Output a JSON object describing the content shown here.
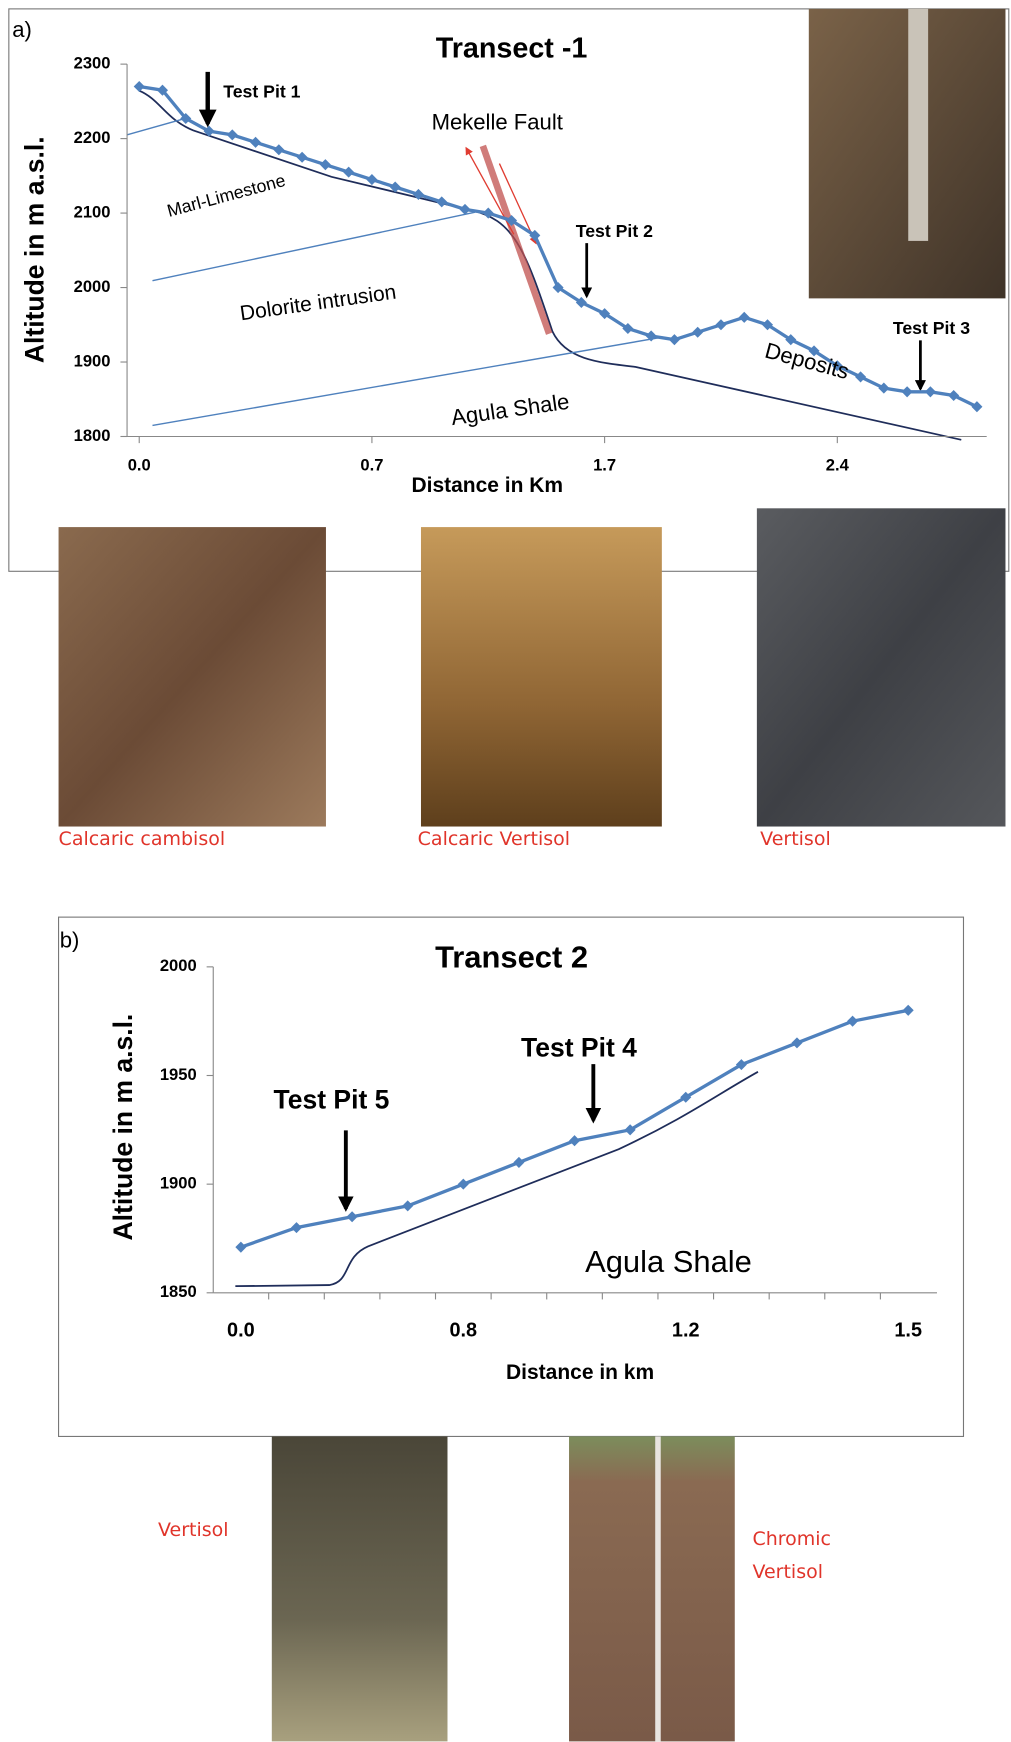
{
  "chart_data": [
    {
      "type": "line",
      "panel_label": "a)",
      "title": "Transect -1",
      "x_label": "Distance in Km",
      "y_label": "Altitude in m a.s.l.",
      "categories": [
        "0.0",
        null,
        null,
        null,
        null,
        null,
        null,
        null,
        null,
        null,
        "0.7",
        null,
        null,
        null,
        null,
        null,
        null,
        null,
        null,
        null,
        "1.7",
        null,
        null,
        null,
        null,
        null,
        null,
        null,
        null,
        null,
        "2.4",
        null,
        null,
        null,
        null,
        null,
        null
      ],
      "values": [
        2270,
        2265,
        2227,
        2210,
        2205,
        2195,
        2185,
        2175,
        2165,
        2155,
        2145,
        2135,
        2125,
        2115,
        2105,
        2100,
        2090,
        2070,
        2000,
        1980,
        1965,
        1945,
        1935,
        1930,
        1940,
        1950,
        1960,
        1950,
        1930,
        1915,
        1895,
        1880,
        1865,
        1860,
        1860,
        1855,
        1840
      ],
      "color": "#4f81bd",
      "ylim": [
        1800,
        2300
      ],
      "yticks": [
        1800,
        1900,
        2000,
        2100,
        2200,
        2300
      ],
      "annotations": [
        "Test Pit 1",
        "Mekelle Fault",
        "Test Pit 2",
        "Test Pit 3",
        "Marl-Limestone",
        "Dolorite intrusion",
        "Deposits",
        "Agula Shale"
      ],
      "soil_labels": [
        "Calcaric  cambisol",
        "Calcaric  Vertisol",
        "Vertisol"
      ]
    },
    {
      "type": "line",
      "panel_label": "b)",
      "title": "Transect 2",
      "x_label": "Distance in km",
      "y_label": "Altitude in m a.s.l.",
      "categories": [
        "0.0",
        null,
        null,
        null,
        "0.8",
        null,
        null,
        null,
        "1.2",
        null,
        null,
        null,
        "1.5"
      ],
      "values": [
        1871,
        1880,
        1885,
        1890,
        1900,
        1910,
        1920,
        1925,
        1940,
        1955,
        1965,
        1975,
        1980
      ],
      "color": "#4f81bd",
      "ylim": [
        1850,
        2000
      ],
      "yticks": [
        1850,
        1900,
        1950,
        2000
      ],
      "annotations": [
        "Test Pit 5",
        "Test Pit  4",
        "Agula Shale"
      ],
      "soil_labels": [
        "Vertisol",
        "Chromic\nVertisol"
      ]
    }
  ]
}
